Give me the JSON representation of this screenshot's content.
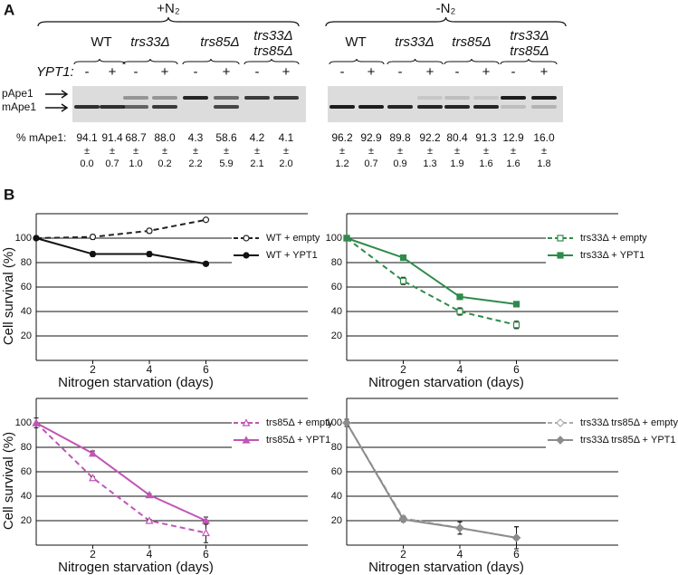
{
  "panel_a": {
    "label": "A",
    "ypt1_label": "YPT1:",
    "bands": [
      "pApe1",
      "mApe1"
    ],
    "quant_label": "% mApe1:",
    "pm": "±",
    "conditions": [
      {
        "label": "+N₂",
        "strains": [
          {
            "lines": [
              "WT"
            ],
            "italic": false
          },
          {
            "lines": [
              "trs33Δ"
            ],
            "italic": true
          },
          {
            "lines": [
              "trs85Δ"
            ],
            "italic": true
          },
          {
            "lines": [
              "trs33Δ",
              "trs85Δ"
            ],
            "italic": true
          }
        ],
        "lanes": [
          {
            "ypt1": "-",
            "mape1": "94.1",
            "error": "0.0"
          },
          {
            "ypt1": "+",
            "mape1": "91.4",
            "error": "0.7"
          },
          {
            "ypt1": "-",
            "mape1": "68.7",
            "error": "1.0"
          },
          {
            "ypt1": "+",
            "mape1": "88.0",
            "error": "0.2"
          },
          {
            "ypt1": "-",
            "mape1": "4.3",
            "error": "2.2"
          },
          {
            "ypt1": "+",
            "mape1": "58.6",
            "error": "5.9"
          },
          {
            "ypt1": "-",
            "mape1": "4.2",
            "error": "2.1"
          },
          {
            "ypt1": "+",
            "mape1": "4.1",
            "error": "2.0"
          }
        ]
      },
      {
        "label": "-N₂",
        "strains": [
          {
            "lines": [
              "WT"
            ],
            "italic": false
          },
          {
            "lines": [
              "trs33Δ"
            ],
            "italic": true
          },
          {
            "lines": [
              "trs85Δ"
            ],
            "italic": true
          },
          {
            "lines": [
              "trs33Δ",
              "trs85Δ"
            ],
            "italic": true
          }
        ],
        "lanes": [
          {
            "ypt1": "-",
            "mape1": "96.2",
            "error": "1.2"
          },
          {
            "ypt1": "+",
            "mape1": "92.9",
            "error": "0.7"
          },
          {
            "ypt1": "-",
            "mape1": "89.8",
            "error": "0.9"
          },
          {
            "ypt1": "+",
            "mape1": "92.2",
            "error": "1.3"
          },
          {
            "ypt1": "-",
            "mape1": "80.4",
            "error": "1.9"
          },
          {
            "ypt1": "+",
            "mape1": "91.3",
            "error": "1.6"
          },
          {
            "ypt1": "-",
            "mape1": "12.9",
            "error": "1.6"
          },
          {
            "ypt1": "+",
            "mape1": "16.0",
            "error": "1.8"
          }
        ]
      }
    ]
  },
  "panel_b_label": "B",
  "chart_data": [
    {
      "type": "line",
      "ylabel": "Cell survival (%)",
      "xlabel": "Nitrogen starvation (days)",
      "x": [
        0,
        2,
        4,
        6
      ],
      "xlim": [
        0,
        9.6
      ],
      "xticks": [
        2,
        4,
        6
      ],
      "ylim": [
        0,
        120
      ],
      "yticks": [
        20,
        40,
        60,
        80,
        100
      ],
      "grid": true,
      "series": [
        {
          "name": "WT + empty",
          "color": "#222222",
          "dashed": true,
          "marker": "circle",
          "filled": false,
          "values": [
            100,
            101,
            106,
            115
          ],
          "errors": [
            0,
            2,
            2,
            1
          ]
        },
        {
          "name": "WT + YPT1",
          "color": "#111111",
          "dashed": false,
          "marker": "circle",
          "filled": true,
          "values": [
            100,
            87,
            87,
            79
          ],
          "errors": [
            1,
            2,
            2,
            1
          ]
        }
      ]
    },
    {
      "type": "line",
      "xlabel": "Nitrogen starvation (days)",
      "x": [
        0,
        2,
        4,
        6
      ],
      "xlim": [
        0,
        9.6
      ],
      "xticks": [
        2,
        4,
        6
      ],
      "ylim": [
        0,
        120
      ],
      "yticks": [
        20,
        40,
        60,
        80,
        100
      ],
      "grid": true,
      "series": [
        {
          "name": "trs33Δ + empty",
          "color": "#2e8b4a",
          "dashed": true,
          "marker": "square",
          "filled": false,
          "values": [
            100,
            65,
            40,
            29
          ],
          "errors": [
            1,
            3,
            3,
            3
          ]
        },
        {
          "name": "trs33Δ + YPT1",
          "color": "#2e8b4a",
          "dashed": false,
          "marker": "square",
          "filled": true,
          "values": [
            100,
            84,
            52,
            46
          ],
          "errors": [
            1,
            1,
            2,
            1
          ]
        }
      ]
    },
    {
      "type": "line",
      "ylabel": "Cell survival (%)",
      "xlabel": "Nitrogen starvation (days)",
      "x": [
        0,
        2,
        4,
        6
      ],
      "xlim": [
        0,
        9.6
      ],
      "xticks": [
        2,
        4,
        6
      ],
      "ylim": [
        0,
        120
      ],
      "yticks": [
        20,
        40,
        60,
        80,
        100
      ],
      "grid": true,
      "series": [
        {
          "name": "trs85Δ + empty",
          "color": "#c055b5",
          "dashed": true,
          "marker": "triangle",
          "filled": false,
          "values": [
            100,
            55,
            20,
            10
          ],
          "errors": [
            0,
            1,
            1,
            8
          ]
        },
        {
          "name": "trs85Δ + YPT1",
          "color": "#c055b5",
          "dashed": false,
          "marker": "triangle",
          "filled": true,
          "values": [
            100,
            75,
            41,
            20
          ],
          "errors": [
            4,
            2,
            1,
            3
          ]
        }
      ]
    },
    {
      "type": "line",
      "xlabel": "Nitrogen starvation (days)",
      "x": [
        0,
        2,
        4,
        6
      ],
      "xlim": [
        0,
        9.6
      ],
      "xticks": [
        2,
        4,
        6
      ],
      "ylim": [
        0,
        120
      ],
      "yticks": [
        20,
        40,
        60,
        80,
        100
      ],
      "grid": true,
      "series": [
        {
          "name": "trs33Δ trs85Δ + empty",
          "color": "#aaaaaa",
          "dashed": true,
          "marker": "diamond",
          "filled": false,
          "values": [
            100,
            22,
            14,
            6
          ],
          "errors": [
            3,
            2,
            5,
            9
          ]
        },
        {
          "name": "trs33Δ trs85Δ + YPT1",
          "color": "#8c8c8c",
          "dashed": false,
          "marker": "diamond",
          "filled": true,
          "values": [
            100,
            21,
            14,
            6
          ],
          "errors": [
            3,
            2,
            5,
            9
          ]
        }
      ]
    }
  ]
}
